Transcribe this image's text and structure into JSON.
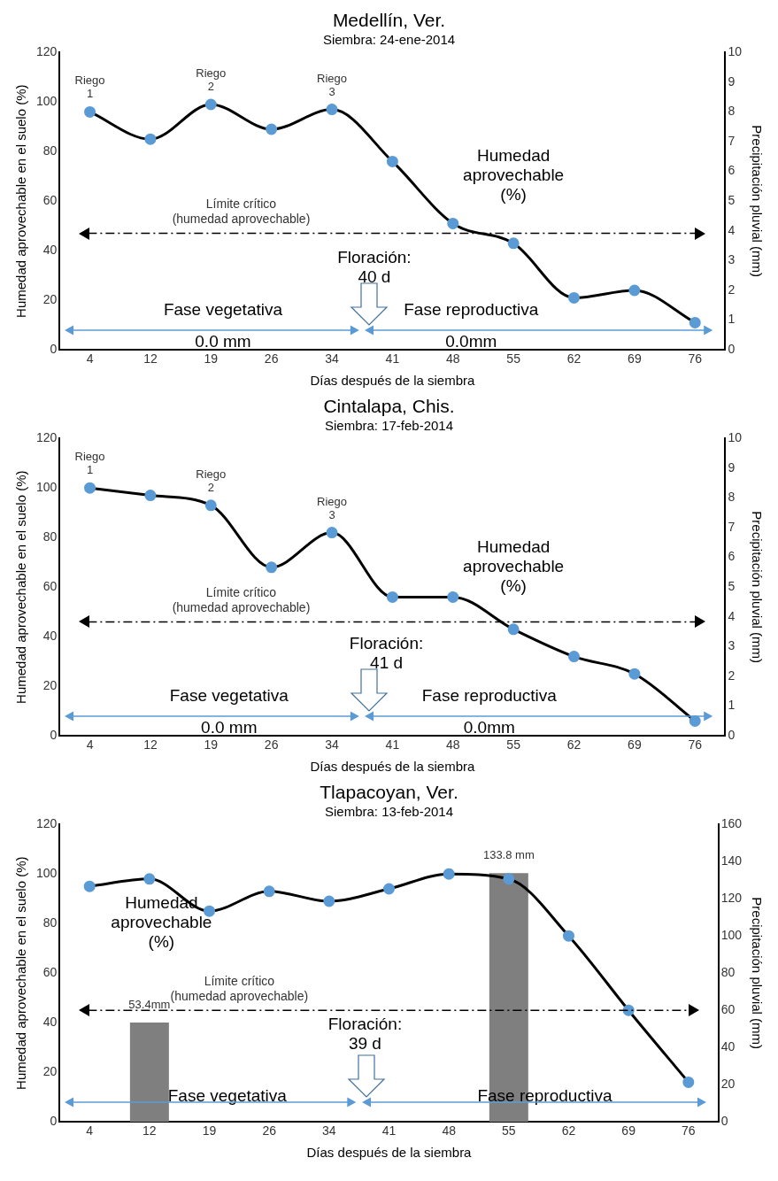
{
  "chart_data": [
    {
      "type": "line",
      "title": "Medellín, Ver.",
      "subtitle": "Siembra: 24-ene-2014",
      "xlabel": "Días después de la siembra",
      "ylabel": "Humedad aprovechable en el suelo (%)",
      "y2label": "Precipitación pluvial (mm)",
      "categories": [
        "4",
        "12",
        "19",
        "26",
        "34",
        "41",
        "48",
        "55",
        "62",
        "69",
        "76"
      ],
      "series": [
        {
          "color": "#000000",
          "colors": [
            "#5b9bd5",
            "#5b9bd5",
            "#5b9bd5",
            "#5b9bd5",
            "#5b9bd5",
            "#5b9bd5",
            "#5b9bd5",
            "#5b9bd5",
            "#5b9bd5",
            "#5b9bd5",
            "#5b9bd5"
          ],
          "values": [
            96,
            85,
            99,
            89,
            97,
            76,
            51,
            43,
            21,
            24,
            11
          ],
          "value_labels": [
            "Riego\n1",
            null,
            "Riego\n2",
            null,
            "Riego\n3",
            null,
            null,
            null,
            null,
            null,
            null
          ]
        }
      ],
      "ylim": [
        0,
        120
      ],
      "yticks": [
        0,
        20,
        40,
        60,
        80,
        100,
        120
      ],
      "y2lim": [
        0,
        10
      ],
      "y2ticks": [
        0,
        1,
        2,
        3,
        4,
        5,
        6,
        7,
        8,
        9,
        10
      ],
      "ref_lines": [
        {
          "axis": "y",
          "value": 47,
          "label": "Límite crítico\n(humedad aprovechable)",
          "color": "#000000",
          "line_style": "dashed"
        }
      ],
      "annotations": [
        "Humedad\naprovechable\n(%)",
        "Floración:\n40 d",
        "Fase vegetativa",
        "Fase reproductiva",
        "0.0 mm",
        "0.0mm"
      ],
      "marker": "circle",
      "grid": false,
      "legend": false
    },
    {
      "type": "line",
      "title": "Cintalapa, Chis.",
      "subtitle": "Siembra: 17-feb-2014",
      "xlabel": "Días después de la siembra",
      "ylabel": "Humedad aprovechable en el suelo (%)",
      "y2label": "Precipitación pluvial (mm)",
      "categories": [
        "4",
        "12",
        "19",
        "26",
        "34",
        "41",
        "48",
        "55",
        "62",
        "69",
        "76"
      ],
      "series": [
        {
          "color": "#000000",
          "colors": [
            "#5b9bd5",
            "#5b9bd5",
            "#5b9bd5",
            "#5b9bd5",
            "#5b9bd5",
            "#5b9bd5",
            "#5b9bd5",
            "#5b9bd5",
            "#5b9bd5",
            "#5b9bd5",
            "#5b9bd5"
          ],
          "values": [
            100,
            97,
            93,
            68,
            82,
            56,
            56,
            43,
            32,
            25,
            6
          ],
          "value_labels": [
            "Riego\n1",
            null,
            "Riego\n2",
            null,
            "Riego\n3",
            null,
            null,
            null,
            null,
            null,
            null
          ]
        }
      ],
      "ylim": [
        0,
        120
      ],
      "yticks": [
        0,
        20,
        40,
        60,
        80,
        100,
        120
      ],
      "y2lim": [
        0,
        10
      ],
      "y2ticks": [
        0,
        1,
        2,
        3,
        4,
        5,
        6,
        7,
        8,
        9,
        10
      ],
      "ref_lines": [
        {
          "axis": "y",
          "value": 46,
          "label": "Límite crítico\n(humedad aprovechable)",
          "color": "#000000",
          "line_style": "dashed"
        }
      ],
      "annotations": [
        "Humedad\naprovechable\n(%)",
        "Floración:\n41 d",
        "Fase vegetativa",
        "Fase reproductiva",
        "0.0 mm",
        "0.0mm"
      ],
      "marker": "circle",
      "grid": false,
      "legend": false
    },
    {
      "type": "line",
      "title": "Tlapacoyan, Ver.",
      "subtitle": "Siembra: 13-feb-2014",
      "xlabel": "Días después de la siembra",
      "ylabel": "Humedad aprovechable en el suelo (%)",
      "y2label": "Precipitación pluvial (mm)",
      "categories": [
        "4",
        "12",
        "19",
        "26",
        "34",
        "41",
        "48",
        "55",
        "62",
        "69",
        "76"
      ],
      "series": [
        {
          "type": "bar",
          "axis": "y2",
          "color": "#7f7f7f",
          "values": [
            null,
            53.4,
            null,
            null,
            null,
            null,
            null,
            133.8,
            null,
            null,
            null
          ],
          "value_labels": [
            null,
            "53.4mm",
            null,
            null,
            null,
            null,
            null,
            "133.8 mm",
            null,
            null,
            null
          ]
        },
        {
          "color": "#000000",
          "colors": [
            "#5b9bd5",
            "#5b9bd5",
            "#5b9bd5",
            "#5b9bd5",
            "#5b9bd5",
            "#5b9bd5",
            "#5b9bd5",
            "#5b9bd5",
            "#5b9bd5",
            "#5b9bd5",
            "#5b9bd5"
          ],
          "values": [
            95,
            98,
            85,
            93,
            89,
            94,
            100,
            98,
            75,
            45,
            16
          ]
        }
      ],
      "ylim": [
        0,
        120
      ],
      "yticks": [
        0,
        20,
        40,
        60,
        80,
        100,
        120
      ],
      "y2lim": [
        0,
        160
      ],
      "y2ticks": [
        0,
        20,
        40,
        60,
        80,
        100,
        120,
        140,
        160
      ],
      "ref_lines": [
        {
          "axis": "y",
          "value": 45,
          "label": "Límite crítico\n(humedad aprovechable)",
          "color": "#000000",
          "line_style": "dashed"
        }
      ],
      "annotations": [
        "Humedad\naprovechable\n(%)",
        "Floración:\n39 d",
        "Fase vegetativa",
        "Fase reproductiva"
      ],
      "marker": "circle",
      "grid": false,
      "legend": false
    }
  ]
}
